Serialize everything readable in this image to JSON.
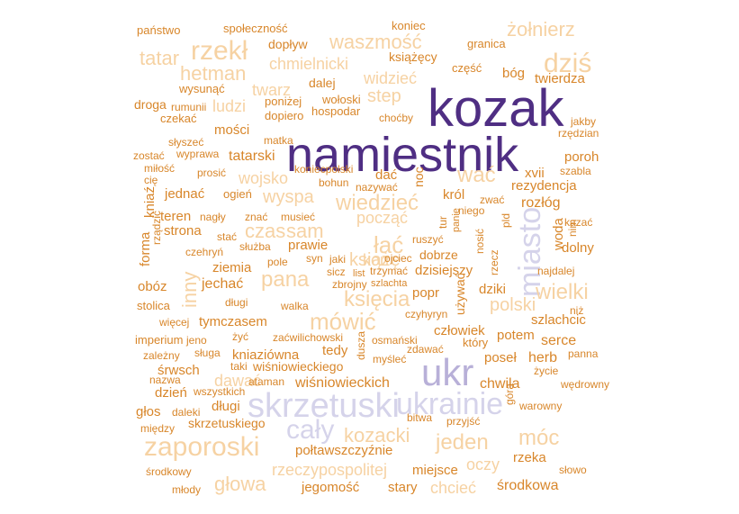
{
  "chart_data": {
    "type": "wordcloud",
    "title": "",
    "palette": {
      "purple_dark": "#4f2e83",
      "purple_light": "#b8b0d8",
      "lavender": "#d5d3ea",
      "orange_light": "#f6d2a3",
      "orange": "#d8862a",
      "orange_dark": "#c0662a"
    },
    "words": [
      {
        "text": "namiestnik",
        "color": "purple_dark",
        "weight": 10
      },
      {
        "text": "kozak",
        "color": "purple_dark",
        "weight": 9
      },
      {
        "text": "ukr",
        "color": "purple_light",
        "weight": 7
      },
      {
        "text": "skrzetuski",
        "color": "lavender",
        "weight": 7
      },
      {
        "text": "ukrainie",
        "color": "lavender",
        "weight": 6
      },
      {
        "text": "cały",
        "color": "lavender",
        "weight": 6
      },
      {
        "text": "miasto",
        "color": "lavender",
        "weight": 6
      },
      {
        "text": "dziś",
        "color": "orange_light",
        "weight": 6
      },
      {
        "text": "rzekł",
        "color": "orange_light",
        "weight": 6
      },
      {
        "text": "zaporoski",
        "color": "orange_light",
        "weight": 6
      },
      {
        "text": "mówić",
        "color": "orange_light",
        "weight": 5
      },
      {
        "text": "waszmość",
        "color": "orange_light",
        "weight": 5
      },
      {
        "text": "żołnierz",
        "color": "orange_light",
        "weight": 5
      },
      {
        "text": "hetman",
        "color": "orange_light",
        "weight": 5
      },
      {
        "text": "tatar",
        "color": "orange_light",
        "weight": 5
      },
      {
        "text": "wać",
        "color": "orange_light",
        "weight": 5
      },
      {
        "text": "wiedzieć",
        "color": "orange_light",
        "weight": 5
      },
      {
        "text": "łać",
        "color": "orange_light",
        "weight": 5
      },
      {
        "text": "pana",
        "color": "orange_light",
        "weight": 5
      },
      {
        "text": "wielki",
        "color": "orange_light",
        "weight": 5
      },
      {
        "text": "kozacki",
        "color": "orange_light",
        "weight": 5
      },
      {
        "text": "jeden",
        "color": "orange_light",
        "weight": 5
      },
      {
        "text": "móc",
        "color": "orange_light",
        "weight": 5
      },
      {
        "text": "głowa",
        "color": "orange_light",
        "weight": 5
      },
      {
        "text": "czas",
        "color": "orange_light",
        "weight": 5
      },
      {
        "text": "sam",
        "color": "orange_light",
        "weight": 5
      },
      {
        "text": "inny",
        "color": "orange_light",
        "weight": 5
      },
      {
        "text": "polski",
        "color": "orange_light",
        "weight": 5
      },
      {
        "text": "książę",
        "color": "orange_light",
        "weight": 5
      },
      {
        "text": "księcia",
        "color": "orange_light",
        "weight": 5
      },
      {
        "text": "chcieć",
        "color": "orange_light",
        "weight": 4
      },
      {
        "text": "oczy",
        "color": "orange_light",
        "weight": 4
      },
      {
        "text": "rzeczypospolitej",
        "color": "orange_light",
        "weight": 4
      },
      {
        "text": "chmielnicki",
        "color": "orange_light",
        "weight": 4
      },
      {
        "text": "step",
        "color": "orange_light",
        "weight": 4
      },
      {
        "text": "widzieć",
        "color": "orange_light",
        "weight": 4
      },
      {
        "text": "ludzi",
        "color": "orange_light",
        "weight": 4
      },
      {
        "text": "twarz",
        "color": "orange_light",
        "weight": 4
      },
      {
        "text": "wyspa",
        "color": "orange_light",
        "weight": 4
      },
      {
        "text": "począć",
        "color": "orange_light",
        "weight": 4
      },
      {
        "text": "wojsko",
        "color": "orange_light",
        "weight": 4
      },
      {
        "text": "kon",
        "color": "orange_light",
        "weight": 4
      },
      {
        "text": "dawać",
        "color": "orange_light",
        "weight": 4
      },
      {
        "text": "państwo",
        "color": "orange",
        "weight": 2
      },
      {
        "text": "społeczność",
        "color": "orange",
        "weight": 2
      },
      {
        "text": "koniec",
        "color": "orange",
        "weight": 2
      },
      {
        "text": "dopływ",
        "color": "orange",
        "weight": 3
      },
      {
        "text": "granica",
        "color": "orange",
        "weight": 2
      },
      {
        "text": "książęcy",
        "color": "orange",
        "weight": 3
      },
      {
        "text": "część",
        "color": "orange",
        "weight": 2
      },
      {
        "text": "bóg",
        "color": "orange",
        "weight": 3
      },
      {
        "text": "twierdza",
        "color": "orange",
        "weight": 3
      },
      {
        "text": "dalej",
        "color": "orange",
        "weight": 3
      },
      {
        "text": "wysunąć",
        "color": "orange",
        "weight": 2
      },
      {
        "text": "poniżej",
        "color": "orange",
        "weight": 2
      },
      {
        "text": "wołoski",
        "color": "orange",
        "weight": 2
      },
      {
        "text": "droga",
        "color": "orange",
        "weight": 3
      },
      {
        "text": "rumunii",
        "color": "orange",
        "weight": 2
      },
      {
        "text": "hospodar",
        "color": "orange",
        "weight": 2
      },
      {
        "text": "dopiero",
        "color": "orange",
        "weight": 2
      },
      {
        "text": "czekać",
        "color": "orange",
        "weight": 2
      },
      {
        "text": "choćby",
        "color": "orange",
        "weight": 2
      },
      {
        "text": "jakby",
        "color": "orange",
        "weight": 2
      },
      {
        "text": "mości",
        "color": "orange",
        "weight": 3
      },
      {
        "text": "matka",
        "color": "orange",
        "weight": 2
      },
      {
        "text": "rzędzian",
        "color": "orange",
        "weight": 2
      },
      {
        "text": "słyszeć",
        "color": "orange",
        "weight": 2
      },
      {
        "text": "wyprawa",
        "color": "orange",
        "weight": 2
      },
      {
        "text": "zostać",
        "color": "orange",
        "weight": 2
      },
      {
        "text": "tatarski",
        "color": "orange",
        "weight": 3
      },
      {
        "text": "poroh",
        "color": "orange",
        "weight": 3
      },
      {
        "text": "miłość",
        "color": "orange",
        "weight": 2
      },
      {
        "text": "koniecpolski",
        "color": "orange",
        "weight": 2
      },
      {
        "text": "szabla",
        "color": "orange",
        "weight": 2
      },
      {
        "text": "prosić",
        "color": "orange",
        "weight": 2
      },
      {
        "text": "xvii",
        "color": "orange",
        "weight": 3
      },
      {
        "text": "cię",
        "color": "orange",
        "weight": 2
      },
      {
        "text": "dać",
        "color": "orange",
        "weight": 3
      },
      {
        "text": "noc",
        "color": "orange",
        "weight": 3
      },
      {
        "text": "rezydencja",
        "color": "orange",
        "weight": 3
      },
      {
        "text": "bohun",
        "color": "orange",
        "weight": 2
      },
      {
        "text": "nazywać",
        "color": "orange",
        "weight": 2
      },
      {
        "text": "jednać",
        "color": "orange",
        "weight": 3
      },
      {
        "text": "ogień",
        "color": "orange",
        "weight": 2
      },
      {
        "text": "król",
        "color": "orange",
        "weight": 3
      },
      {
        "text": "zwać",
        "color": "orange",
        "weight": 2
      },
      {
        "text": "rozłóg",
        "color": "orange",
        "weight": 3
      },
      {
        "text": "kniaź",
        "color": "orange",
        "weight": 3
      },
      {
        "text": "niego",
        "color": "orange",
        "weight": 2
      },
      {
        "text": "teren",
        "color": "orange",
        "weight": 3
      },
      {
        "text": "nagły",
        "color": "orange",
        "weight": 2
      },
      {
        "text": "znać",
        "color": "orange",
        "weight": 2
      },
      {
        "text": "musieć",
        "color": "orange",
        "weight": 2
      },
      {
        "text": "tur",
        "color": "orange",
        "weight": 2
      },
      {
        "text": "panie",
        "color": "orange",
        "weight": 2
      },
      {
        "text": "pld",
        "color": "orange",
        "weight": 2
      },
      {
        "text": "kazać",
        "color": "orange",
        "weight": 2
      },
      {
        "text": "rządzić",
        "color": "orange",
        "weight": 2
      },
      {
        "text": "strona",
        "color": "orange",
        "weight": 3
      },
      {
        "text": "stać",
        "color": "orange",
        "weight": 2
      },
      {
        "text": "nim",
        "color": "orange",
        "weight": 2
      },
      {
        "text": "woda",
        "color": "orange",
        "weight": 3
      },
      {
        "text": "ruszyć",
        "color": "orange",
        "weight": 2
      },
      {
        "text": "forma",
        "color": "orange",
        "weight": 3
      },
      {
        "text": "czehryń",
        "color": "orange",
        "weight": 2
      },
      {
        "text": "służba",
        "color": "orange",
        "weight": 2
      },
      {
        "text": "prawie",
        "color": "orange",
        "weight": 3
      },
      {
        "text": "nosić",
        "color": "orange",
        "weight": 2
      },
      {
        "text": "dolny",
        "color": "orange",
        "weight": 3
      },
      {
        "text": "pole",
        "color": "orange",
        "weight": 2
      },
      {
        "text": "syn",
        "color": "orange",
        "weight": 2
      },
      {
        "text": "jaki",
        "color": "orange",
        "weight": 2
      },
      {
        "text": "ojciec",
        "color": "orange",
        "weight": 2
      },
      {
        "text": "dobrze",
        "color": "orange",
        "weight": 3
      },
      {
        "text": "rzecz",
        "color": "orange",
        "weight": 2
      },
      {
        "text": "ziemia",
        "color": "orange",
        "weight": 3
      },
      {
        "text": "sicz",
        "color": "orange",
        "weight": 2
      },
      {
        "text": "list",
        "color": "orange",
        "weight": 2
      },
      {
        "text": "trzymać",
        "color": "orange",
        "weight": 2
      },
      {
        "text": "dzisiejszy",
        "color": "orange",
        "weight": 3
      },
      {
        "text": "najdalej",
        "color": "orange",
        "weight": 2
      },
      {
        "text": "szlachta",
        "color": "orange",
        "weight": 2
      },
      {
        "text": "obóz",
        "color": "orange",
        "weight": 3
      },
      {
        "text": "jechać",
        "color": "orange",
        "weight": 3
      },
      {
        "text": "zbrojny",
        "color": "orange",
        "weight": 2
      },
      {
        "text": "dziki",
        "color": "orange",
        "weight": 3
      },
      {
        "text": "popr",
        "color": "orange",
        "weight": 3
      },
      {
        "text": "używać",
        "color": "orange",
        "weight": 2
      },
      {
        "text": "długi",
        "color": "orange",
        "weight": 3
      },
      {
        "text": "stolica",
        "color": "orange",
        "weight": 2
      },
      {
        "text": "walka",
        "color": "orange",
        "weight": 2
      },
      {
        "text": "czyhyryn",
        "color": "orange",
        "weight": 2
      },
      {
        "text": "niż",
        "color": "orange",
        "weight": 2
      },
      {
        "text": "więcej",
        "color": "orange",
        "weight": 2
      },
      {
        "text": "tymczasem",
        "color": "orange",
        "weight": 3
      },
      {
        "text": "szlachcic",
        "color": "orange",
        "weight": 3
      },
      {
        "text": "człowiek",
        "color": "orange",
        "weight": 3
      },
      {
        "text": "imperium",
        "color": "orange",
        "weight": 2
      },
      {
        "text": "jeno",
        "color": "orange",
        "weight": 2
      },
      {
        "text": "żyć",
        "color": "orange",
        "weight": 2
      },
      {
        "text": "zaćwilichowski",
        "color": "orange",
        "weight": 2
      },
      {
        "text": "osmański",
        "color": "orange",
        "weight": 2
      },
      {
        "text": "potem",
        "color": "orange",
        "weight": 3
      },
      {
        "text": "serce",
        "color": "orange",
        "weight": 3
      },
      {
        "text": "który",
        "color": "orange",
        "weight": 2
      },
      {
        "text": "zależny",
        "color": "orange",
        "weight": 2
      },
      {
        "text": "sługa",
        "color": "orange",
        "weight": 2
      },
      {
        "text": "kniaziówna",
        "color": "orange",
        "weight": 3
      },
      {
        "text": "tedy",
        "color": "orange",
        "weight": 3
      },
      {
        "text": "dusza",
        "color": "orange",
        "weight": 2
      },
      {
        "text": "zdawać",
        "color": "orange",
        "weight": 2
      },
      {
        "text": "panna",
        "color": "orange",
        "weight": 2
      },
      {
        "text": "poseł",
        "color": "orange",
        "weight": 3
      },
      {
        "text": "herb",
        "color": "orange",
        "weight": 3
      },
      {
        "text": "śrwsch",
        "color": "orange",
        "weight": 3
      },
      {
        "text": "taki",
        "color": "orange",
        "weight": 2
      },
      {
        "text": "wiśniowieckiego",
        "color": "orange",
        "weight": 3
      },
      {
        "text": "myśleć",
        "color": "orange",
        "weight": 2
      },
      {
        "text": "życie",
        "color": "orange",
        "weight": 2
      },
      {
        "text": "nazwa",
        "color": "orange",
        "weight": 2
      },
      {
        "text": "ataman",
        "color": "orange",
        "weight": 2
      },
      {
        "text": "wiśniowieckich",
        "color": "orange",
        "weight": 3
      },
      {
        "text": "chwila",
        "color": "orange",
        "weight": 3
      },
      {
        "text": "wędrowny",
        "color": "orange",
        "weight": 2
      },
      {
        "text": "dzień",
        "color": "orange",
        "weight": 3
      },
      {
        "text": "wszystkich",
        "color": "orange",
        "weight": 2
      },
      {
        "text": "długi",
        "color": "orange",
        "weight": 3
      },
      {
        "text": "góra",
        "color": "orange",
        "weight": 2
      },
      {
        "text": "warowny",
        "color": "orange",
        "weight": 2
      },
      {
        "text": "głos",
        "color": "orange",
        "weight": 3
      },
      {
        "text": "daleki",
        "color": "orange",
        "weight": 2
      },
      {
        "text": "bitwa",
        "color": "orange",
        "weight": 2
      },
      {
        "text": "przyjść",
        "color": "orange",
        "weight": 2
      },
      {
        "text": "między",
        "color": "orange",
        "weight": 2
      },
      {
        "text": "skrzetuskiego",
        "color": "orange",
        "weight": 3
      },
      {
        "text": "połtawszczyźnie",
        "color": "orange",
        "weight": 3
      },
      {
        "text": "rzeka",
        "color": "orange",
        "weight": 3
      },
      {
        "text": "środkowy",
        "color": "orange",
        "weight": 2
      },
      {
        "text": "miejsce",
        "color": "orange",
        "weight": 3
      },
      {
        "text": "słowo",
        "color": "orange",
        "weight": 2
      },
      {
        "text": "młody",
        "color": "orange",
        "weight": 2
      },
      {
        "text": "jegomość",
        "color": "orange",
        "weight": 3
      },
      {
        "text": "stary",
        "color": "orange",
        "weight": 3
      },
      {
        "text": "środkowa",
        "color": "orange",
        "weight": 3
      }
    ]
  }
}
